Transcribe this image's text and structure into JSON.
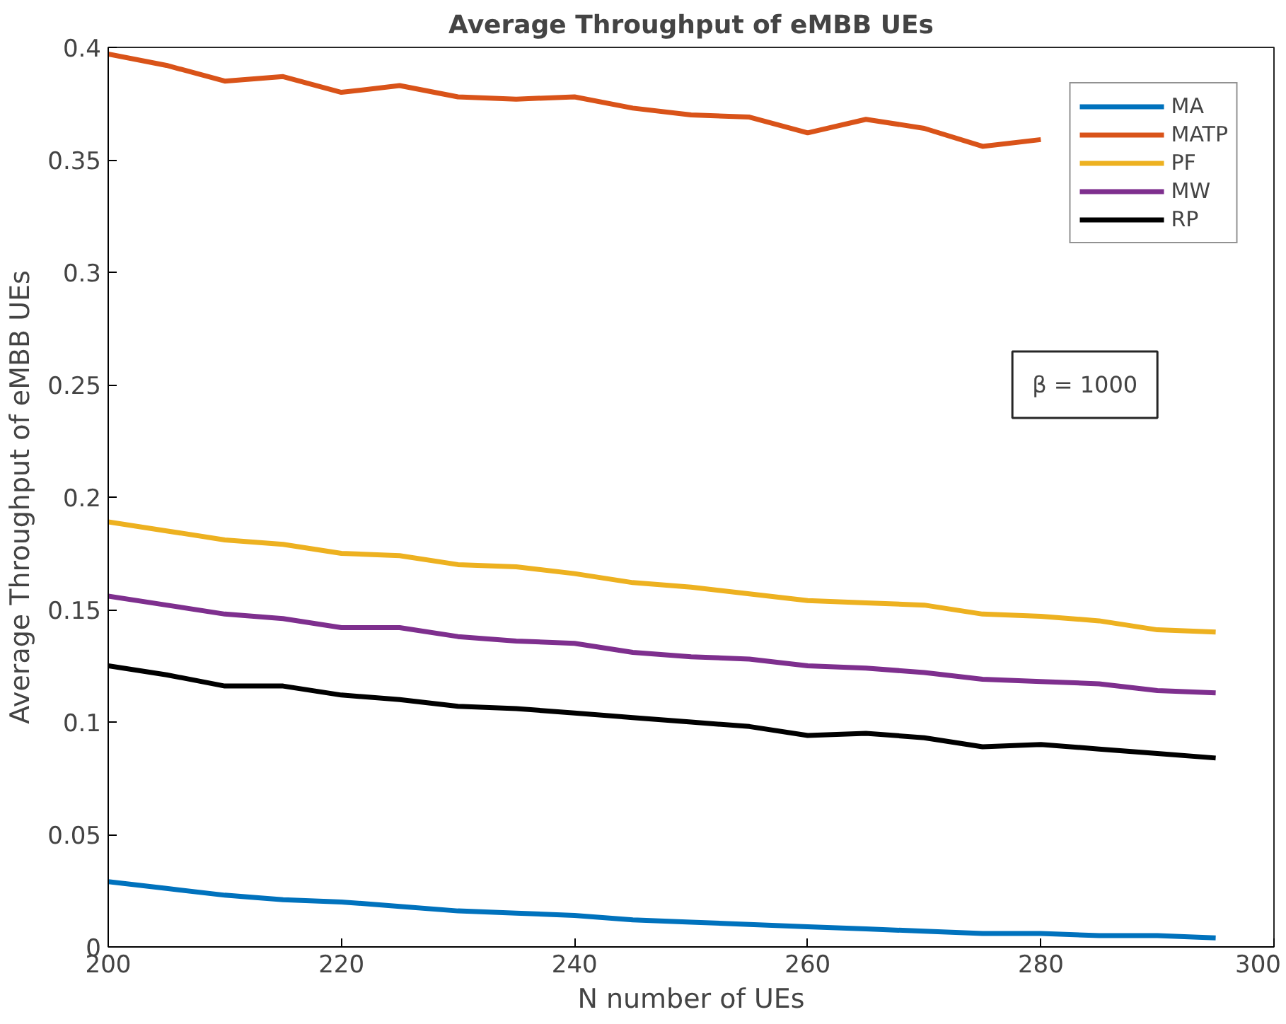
{
  "chart_data": {
    "type": "line",
    "title": "Average Throughput of eMBB UEs",
    "xlabel": "N number of UEs",
    "ylabel": "Average Throughput of eMBB UEs",
    "x": [
      200,
      205,
      210,
      215,
      220,
      225,
      230,
      235,
      240,
      245,
      250,
      255,
      260,
      265,
      270,
      275,
      280,
      285,
      290,
      295
    ],
    "xlim": [
      200,
      300
    ],
    "xticks": [
      200,
      220,
      240,
      260,
      280,
      300
    ],
    "ylim": [
      0,
      0.4
    ],
    "yticks": [
      0,
      0.05,
      0.1,
      0.15,
      0.2,
      0.25,
      0.3,
      0.35,
      0.4
    ],
    "grid": false,
    "legend": "top right",
    "annotations": [
      "β = 1000"
    ],
    "series": [
      {
        "name": "MA",
        "color": "#0072bd",
        "values": [
          0.029,
          0.026,
          0.023,
          0.021,
          0.02,
          0.018,
          0.016,
          0.015,
          0.014,
          0.012,
          0.011,
          0.01,
          0.009,
          0.008,
          0.007,
          0.006,
          0.006,
          0.005,
          0.005,
          0.004
        ]
      },
      {
        "name": "MATP",
        "color": "#d95319",
        "values": [
          0.397,
          0.392,
          0.385,
          0.387,
          0.38,
          0.383,
          0.378,
          0.377,
          0.378,
          0.373,
          0.37,
          0.369,
          0.362,
          0.368,
          0.364,
          0.356,
          0.359,
          null,
          null,
          null
        ]
      },
      {
        "name": "PF",
        "color": "#edb120",
        "values": [
          0.189,
          0.185,
          0.181,
          0.179,
          0.175,
          0.174,
          0.17,
          0.169,
          0.166,
          0.162,
          0.16,
          0.157,
          0.154,
          0.153,
          0.152,
          0.148,
          0.147,
          0.145,
          0.141,
          0.14
        ]
      },
      {
        "name": "MW",
        "color": "#7e2f8e",
        "values": [
          0.156,
          0.152,
          0.148,
          0.146,
          0.142,
          0.142,
          0.138,
          0.136,
          0.135,
          0.131,
          0.129,
          0.128,
          0.125,
          0.124,
          0.122,
          0.119,
          0.118,
          0.117,
          0.114,
          0.113
        ]
      },
      {
        "name": "RP",
        "color": "#000000",
        "values": [
          0.125,
          0.121,
          0.116,
          0.116,
          0.112,
          0.11,
          0.107,
          0.106,
          0.104,
          0.102,
          0.1,
          0.098,
          0.094,
          0.095,
          0.093,
          0.089,
          0.09,
          0.088,
          0.086,
          0.084
        ]
      }
    ]
  }
}
